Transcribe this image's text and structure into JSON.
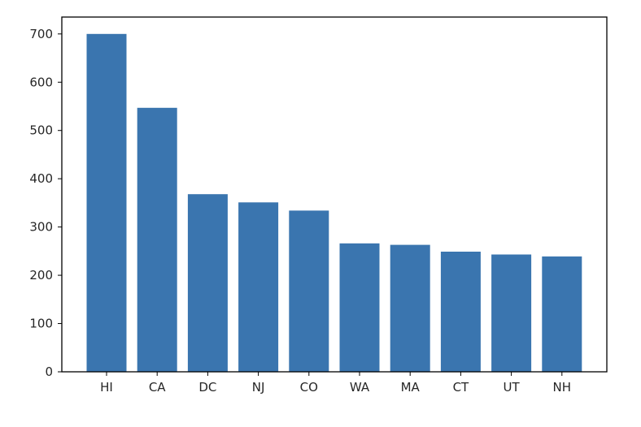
{
  "chart_data": {
    "type": "bar",
    "categories": [
      "HI",
      "CA",
      "DC",
      "NJ",
      "CO",
      "WA",
      "MA",
      "CT",
      "UT",
      "NH"
    ],
    "values": [
      700,
      547,
      368,
      351,
      334,
      266,
      263,
      249,
      243,
      239
    ],
    "title": "",
    "xlabel": "",
    "ylabel": "",
    "ylim": [
      0,
      735
    ],
    "yticks": [
      0,
      100,
      200,
      300,
      400,
      500,
      600,
      700
    ],
    "bar_color": "#3a75af",
    "grid": false,
    "legend": "none"
  }
}
